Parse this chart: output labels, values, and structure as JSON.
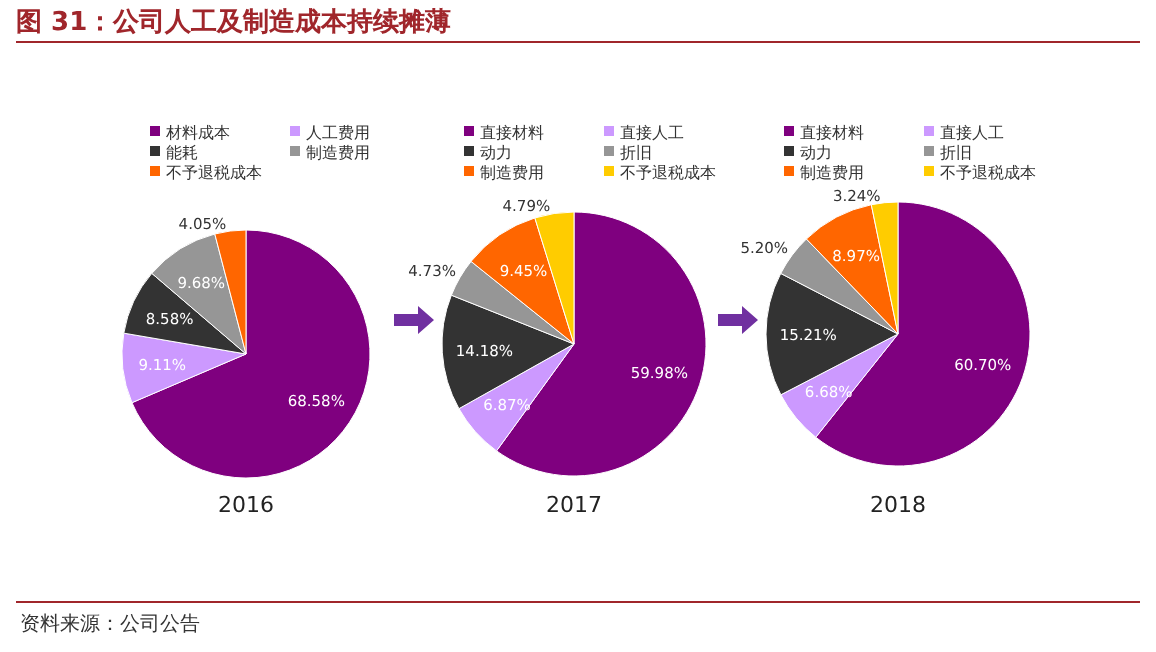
{
  "chart_data": [
    {
      "type": "pie",
      "title": "图 31：公司人工及制造成本持续摊薄",
      "xlabel": "2016",
      "legend": "top",
      "categories": [
        "材料成本",
        "人工费用",
        "能耗",
        "制造费用",
        "不予退税成本"
      ],
      "values": [
        68.58,
        9.11,
        8.58,
        9.68,
        4.05
      ],
      "value_labels": [
        "68.58%",
        "9.11%",
        "8.58%",
        "9.68%",
        "4.05%"
      ],
      "colors": [
        "#7f007f",
        "#cc99ff",
        "#333333",
        "#969696",
        "#ff6600"
      ]
    },
    {
      "type": "pie",
      "xlabel": "2017",
      "legend": "top",
      "categories": [
        "直接材料",
        "直接人工",
        "动力",
        "折旧",
        "制造费用",
        "不予退税成本"
      ],
      "values": [
        59.98,
        6.87,
        14.18,
        4.73,
        9.45,
        4.79
      ],
      "value_labels": [
        "59.98%",
        "6.87%",
        "14.18%",
        "4.73%",
        "9.45%",
        "4.79%"
      ],
      "colors": [
        "#7f007f",
        "#cc99ff",
        "#333333",
        "#969696",
        "#ff6600",
        "#ffcc00"
      ]
    },
    {
      "type": "pie",
      "xlabel": "2018",
      "legend": "top",
      "annotations": [
        "资料来源：公司公告"
      ],
      "categories": [
        "直接材料",
        "直接人工",
        "动力",
        "折旧",
        "制造费用",
        "不予退税成本"
      ],
      "values": [
        60.7,
        6.68,
        15.21,
        5.2,
        8.97,
        3.24
      ],
      "value_labels": [
        "60.70%",
        "6.68%",
        "15.21%",
        "5.20%",
        "8.97%",
        "3.24%"
      ],
      "colors": [
        "#7f007f",
        "#cc99ff",
        "#333333",
        "#969696",
        "#ff6600",
        "#ffcc00"
      ]
    }
  ]
}
